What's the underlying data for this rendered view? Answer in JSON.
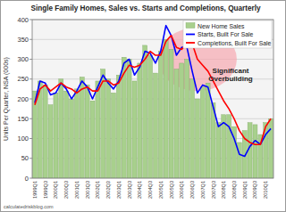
{
  "chart_data": {
    "type": "bar",
    "title": "Single Family Homes, Sales vs. Starts and Completions, Quarterly",
    "y_label": "Units Per Quarter, NSA (000s)",
    "annotation": "Significant Overbuilding",
    "source": "calculatedriskblog.com",
    "categories": [
      "1999Q1",
      null,
      "1999Q3",
      null,
      "2000Q1",
      null,
      "2000Q3",
      null,
      "2001Q1",
      null,
      "2001Q3",
      null,
      "2002Q1",
      null,
      "2002Q3",
      null,
      "2003Q1",
      null,
      "2003Q3",
      null,
      "2004Q1",
      null,
      "2004Q3",
      null,
      "2005Q1",
      null,
      "2005Q3",
      null,
      "2006Q1",
      null,
      "2006Q3",
      null,
      "2007Q1",
      null,
      "2007Q3",
      null,
      "2008Q1",
      null,
      "2008Q3",
      null,
      "2009Q1",
      null,
      "2009Q3",
      null,
      "2010Q1",
      null
    ],
    "series": [
      {
        "name": "New Home Sales",
        "type": "bar",
        "color": "#a8d08d",
        "values": [
          220,
          245,
          235,
          185,
          215,
          250,
          220,
          200,
          225,
          255,
          235,
          195,
          245,
          275,
          250,
          215,
          260,
          305,
          300,
          245,
          290,
          335,
          310,
          265,
          320,
          350,
          325,
          275,
          290,
          300,
          250,
          200,
          230,
          240,
          190,
          140,
          160,
          160,
          130,
          90,
          120,
          140,
          135,
          110,
          140,
          150
        ]
      },
      {
        "name": "Starts, Built For Sale",
        "type": "line",
        "color": "#0000ff",
        "values": [
          190,
          245,
          240,
          210,
          215,
          240,
          225,
          200,
          220,
          245,
          230,
          200,
          230,
          260,
          240,
          225,
          245,
          290,
          300,
          260,
          280,
          320,
          315,
          290,
          320,
          385,
          360,
          310,
          330,
          330,
          270,
          215,
          235,
          230,
          180,
          130,
          140,
          130,
          100,
          60,
          55,
          80,
          95,
          85,
          110,
          125
        ]
      },
      {
        "name": "Completions, Built For Sale",
        "type": "line",
        "color": "#ff0000",
        "values": [
          185,
          225,
          235,
          220,
          230,
          240,
          230,
          225,
          215,
          225,
          230,
          220,
          220,
          245,
          245,
          235,
          240,
          265,
          285,
          280,
          285,
          300,
          320,
          310,
          310,
          345,
          360,
          330,
          325,
          340,
          340,
          300,
          285,
          270,
          245,
          220,
          195,
          175,
          150,
          120,
          100,
          90,
          85,
          85,
          130,
          150
        ]
      }
    ],
    "ylim": [
      0,
      400
    ],
    "yticks": [
      0,
      50,
      100,
      150,
      200,
      250,
      300,
      350,
      400
    ],
    "grid": true,
    "legend": "top-right"
  }
}
